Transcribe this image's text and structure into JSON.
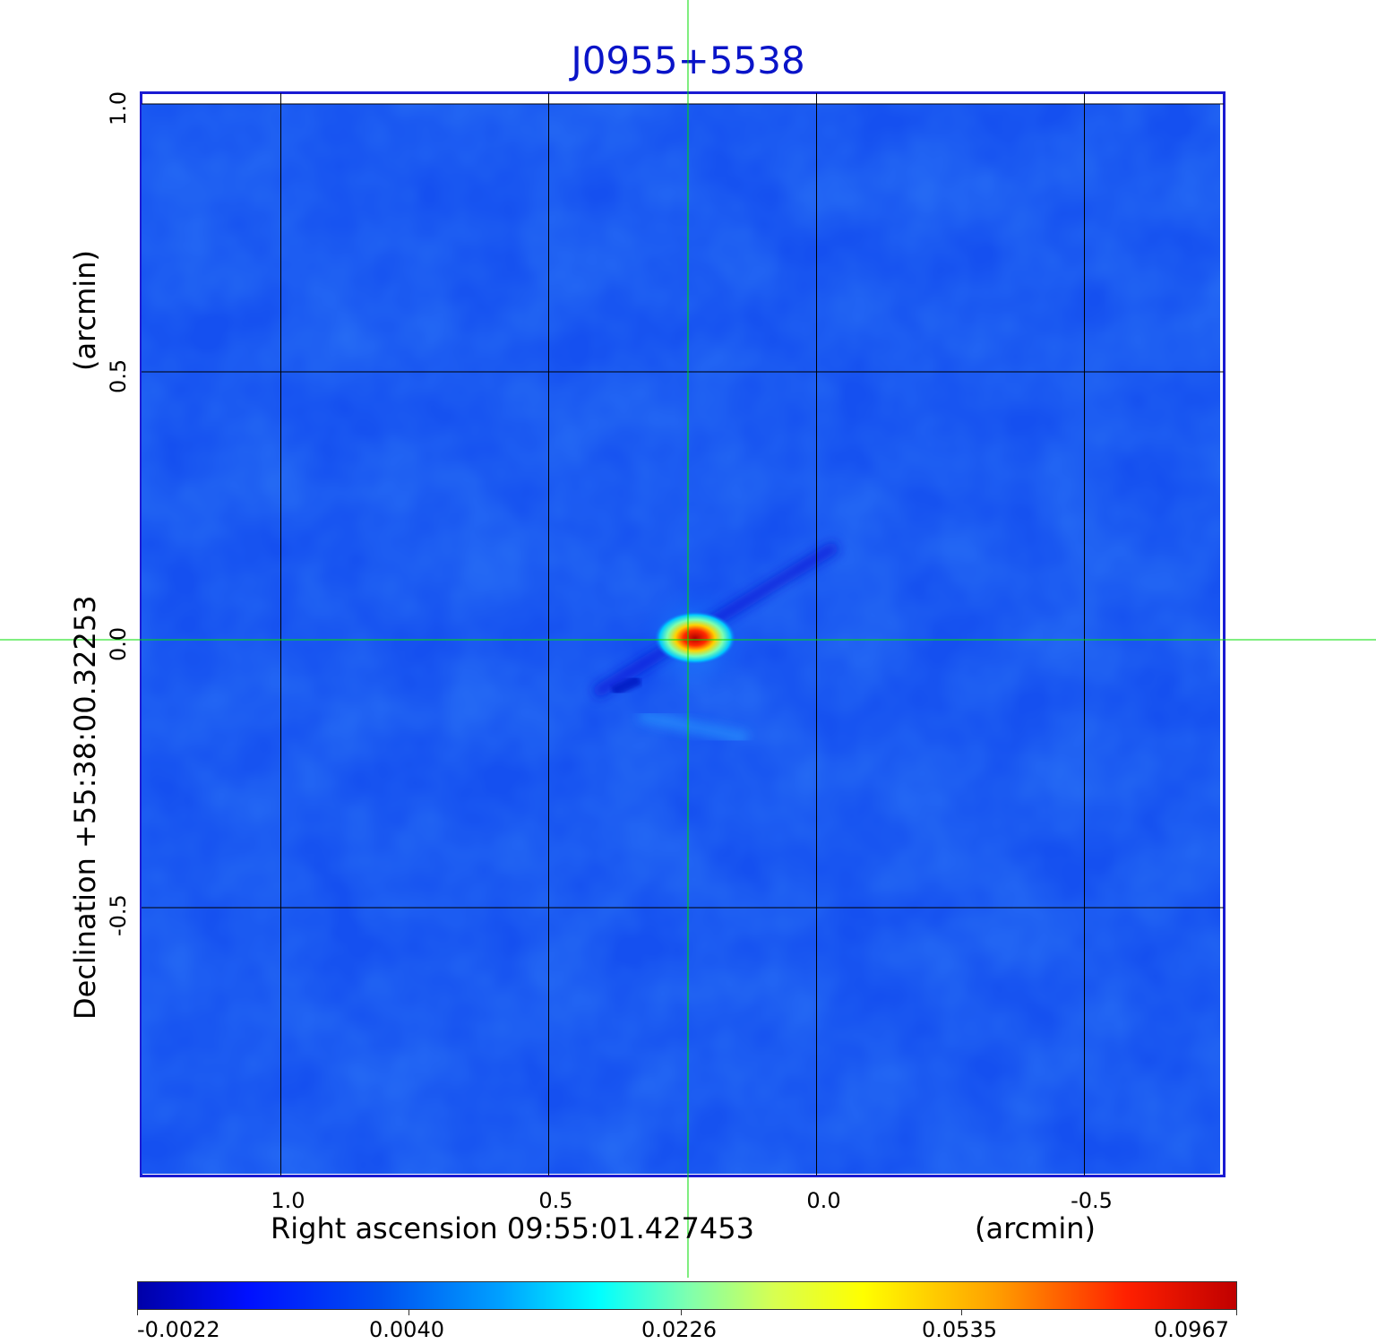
{
  "title": "J0955+5538",
  "chart_data": {
    "type": "heatmap",
    "title": "J0955+5538",
    "xlabel": "Right ascension  09:55:01.427453",
    "xunit": "(arcmin)",
    "ylabel": "Declination  +55:38:00.32253",
    "yunit": "(arcmin)",
    "x_axis": {
      "ticks": [
        "1.0",
        "0.5",
        "0.0",
        "-0.5"
      ],
      "tick_values": [
        1.0,
        0.5,
        0.0,
        -0.5
      ],
      "range": [
        1.26,
        -0.76
      ],
      "direction": "decreasing"
    },
    "y_axis": {
      "ticks": [
        "1.0",
        "0.5",
        "0.0",
        "-0.5"
      ],
      "tick_values": [
        1.0,
        0.5,
        0.0,
        -0.5
      ],
      "range": [
        -1.0,
        1.02
      ]
    },
    "grid": true,
    "crosshair": {
      "x": 0.24,
      "y": 0.0,
      "color": "#00dd00"
    },
    "source_peak": {
      "x": 0.23,
      "y": 0.0,
      "value": 0.0967
    },
    "colorbar": {
      "labels": [
        "-0.0022",
        "0.0040",
        "0.0226",
        "0.0535",
        "0.0967"
      ],
      "values": [
        -0.0022,
        0.004,
        0.0226,
        0.0535,
        0.0967
      ],
      "colormap": "jet",
      "placement": "bottom"
    },
    "colors": {
      "title": "#0a14c8",
      "frame": "#1a1ad2",
      "background_field": "#1550f0"
    }
  }
}
